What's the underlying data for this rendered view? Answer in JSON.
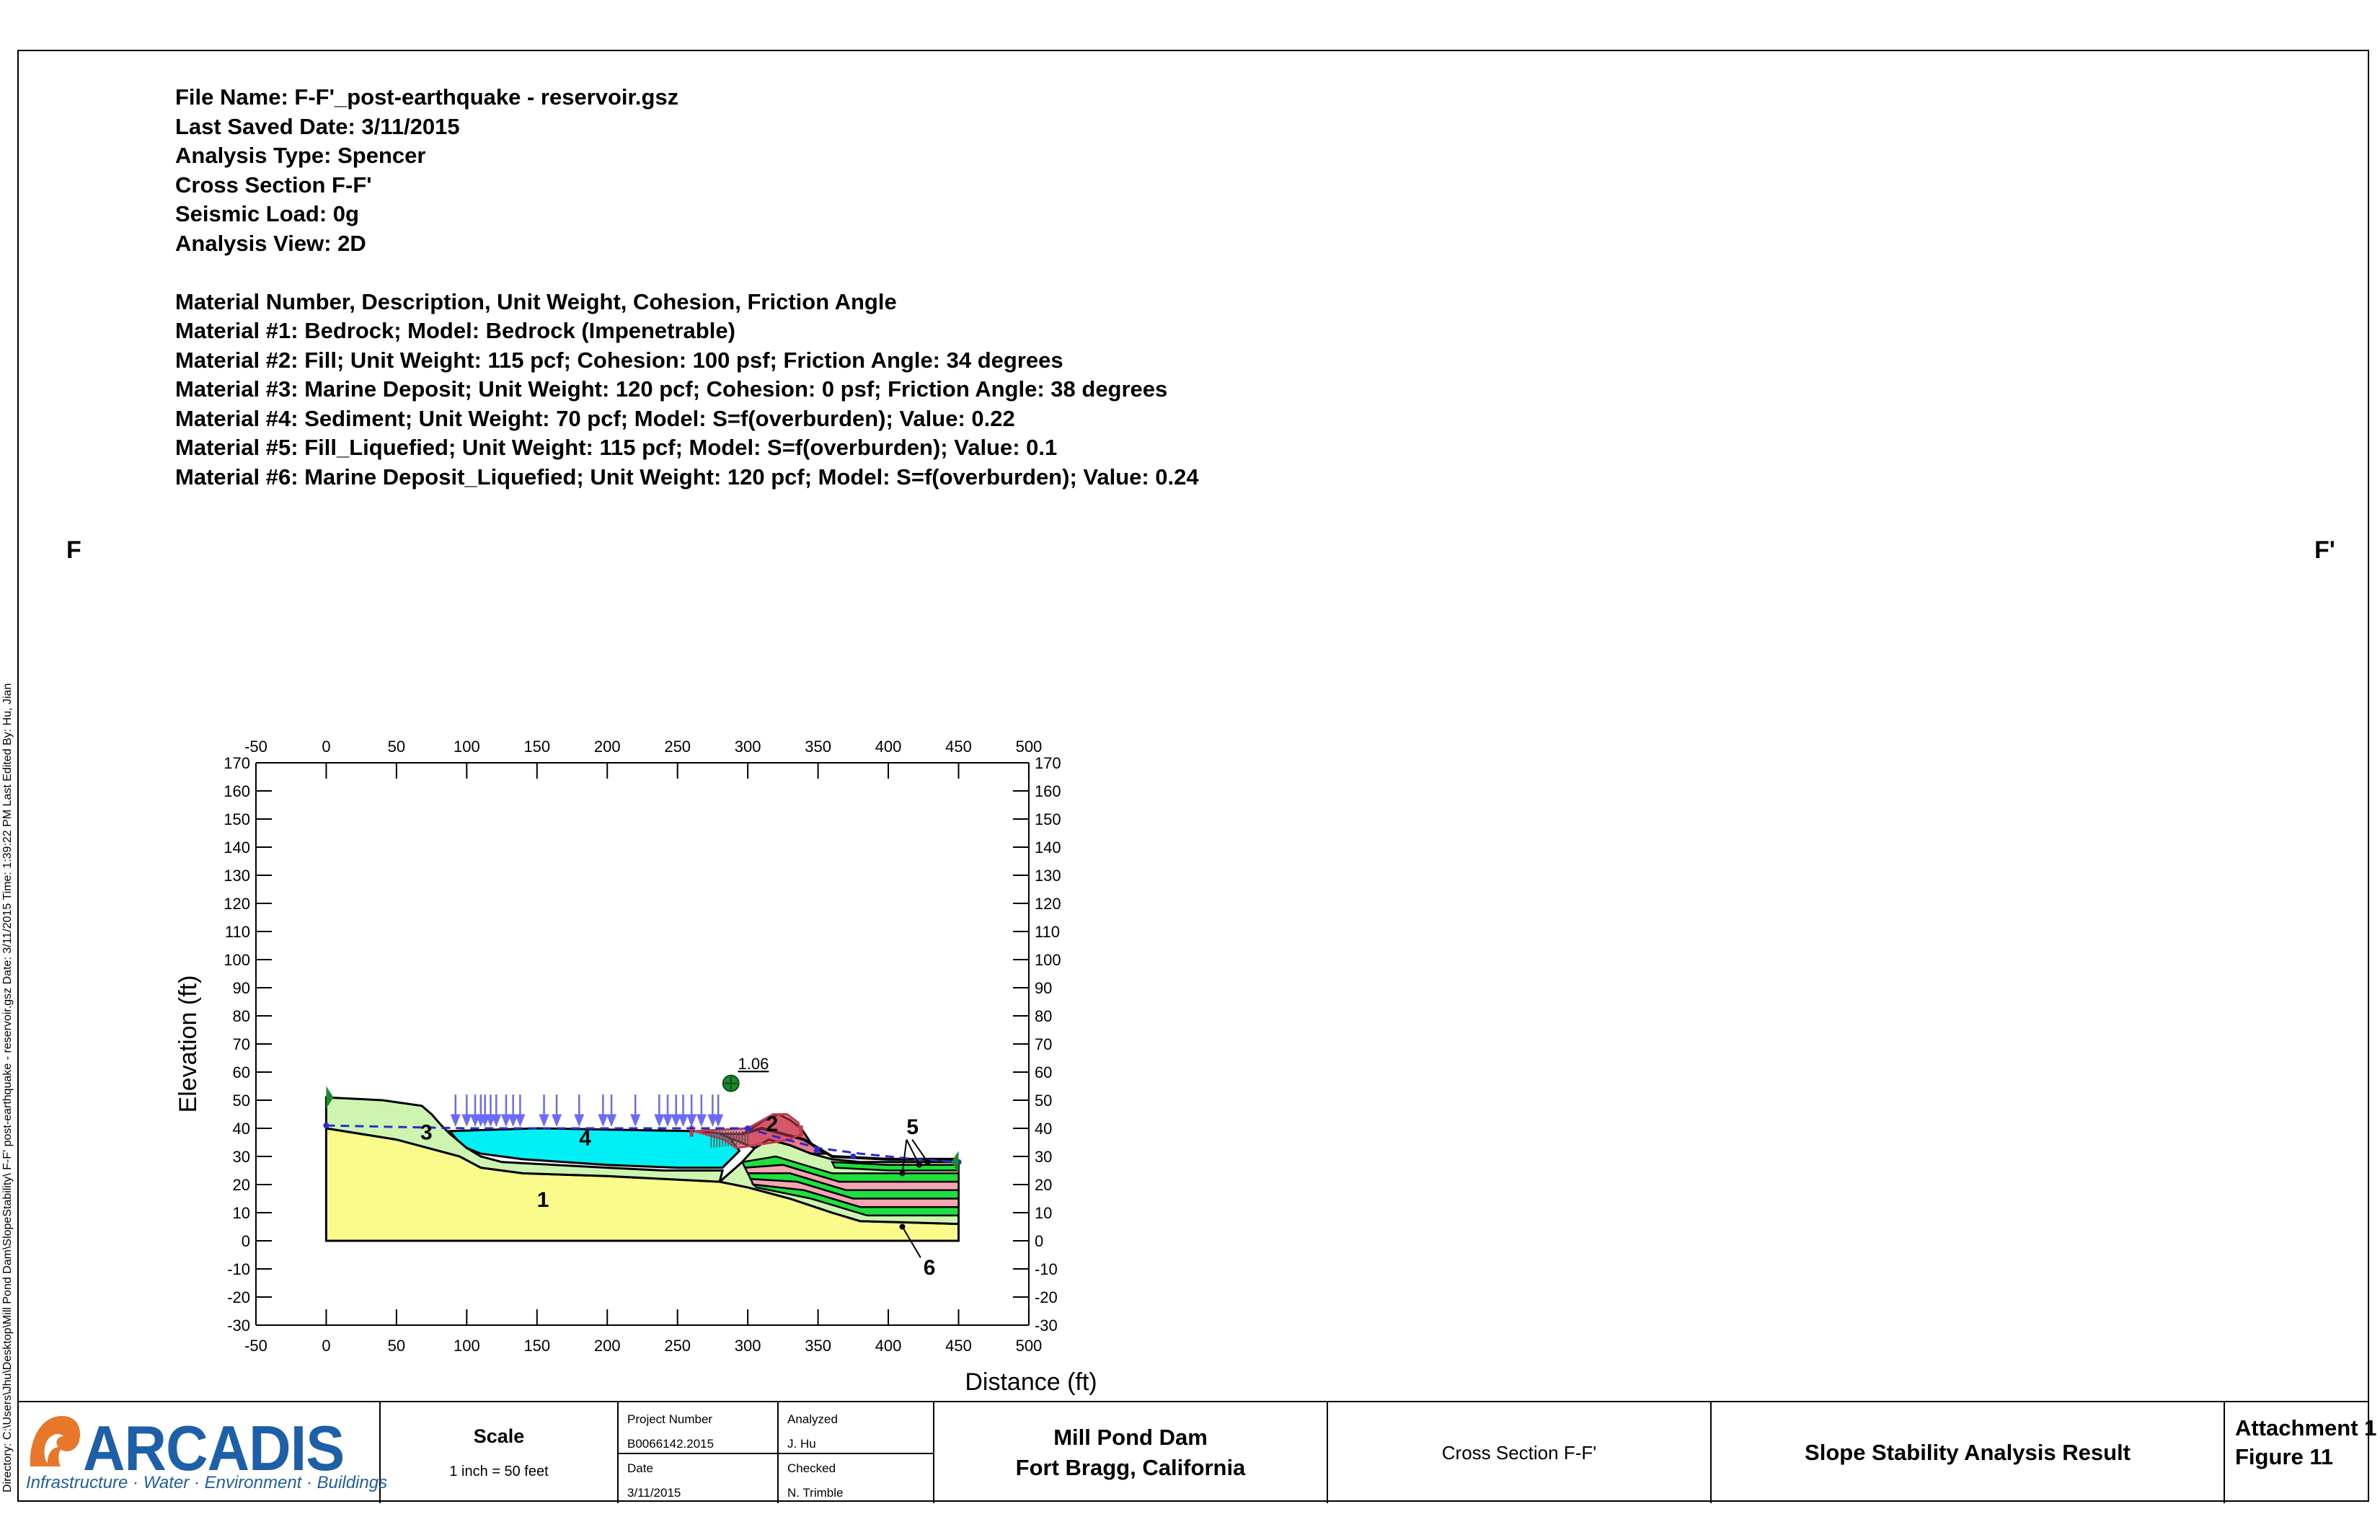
{
  "header": {
    "lines": [
      "File Name: F-F'_post-earthquake - reservoir.gsz",
      "Last Saved Date: 3/11/2015",
      "Analysis Type: Spencer",
      "Cross Section F-F'",
      "Seismic Load: 0g",
      "Analysis View: 2D"
    ],
    "materials": [
      "Material Number, Description, Unit Weight, Cohesion, Friction Angle",
      "Material #1: Bedrock; Model: Bedrock (Impenetrable)",
      "Material #2: Fill; Unit Weight: 115 pcf; Cohesion: 100 psf; Friction Angle: 34 degrees",
      "Material #3: Marine Deposit; Unit Weight: 120 pcf; Cohesion: 0 psf; Friction Angle: 38 degrees",
      "Material #4: Sediment; Unit Weight: 70 pcf; Model: S=f(overburden); Value: 0.22",
      "Material #5: Fill_Liquefied; Unit Weight: 115 pcf; Model: S=f(overburden); Value: 0.1",
      "Material #6: Marine Deposit_Liquefied; Unit Weight: 120 pcf; Model: S=f(overburden); Value: 0.24"
    ]
  },
  "side_label": "Directory: C:\\Users\\Jhu\\Desktop\\Mill Pond Dam\\SlopeStability\\ F-F' post-earthquake - reservoir.gsz    Date: 3/11/2015    Time: 1:39:22 PM    Last Edited By: Hu, Jian",
  "section_left": "F",
  "section_right": "F'",
  "diagram": {
    "xlabel": "Distance (ft)",
    "ylabel": "Elevation (ft)",
    "x_ticks": [
      -50,
      0,
      50,
      100,
      150,
      200,
      250,
      300,
      350,
      400,
      450,
      500
    ],
    "y_ticks": [
      170,
      160,
      150,
      140,
      130,
      120,
      110,
      100,
      90,
      80,
      70,
      60,
      50,
      40,
      30,
      20,
      10,
      0,
      -10,
      -20,
      -30
    ],
    "xlim": [
      -50,
      500
    ],
    "ylim": [
      -30,
      170
    ],
    "factor_of_safety": "1.06",
    "material_labels": [
      "1",
      "2",
      "3",
      "4",
      "5",
      "6"
    ],
    "colors": {
      "bedrock": "#fbfb8c",
      "fill": "#e87a8a",
      "marine_deposit": "#cdf5b0",
      "sediment": "#00f0f5",
      "fill_liquefied": "#1ee03c",
      "marine_deposit_liquefied": "#f4a6b0",
      "water_line": "#2a2ad0",
      "load_arrow": "#6a6aff",
      "slip_surface": "#c23b50",
      "center": "#1a8a2a"
    }
  },
  "title_block": {
    "logo": "ARCADIS",
    "logo_tagline": "Infrastructure · Water · Environment · Buildings",
    "scale_label": "Scale",
    "scale_value": "1 inch = 50 feet",
    "project_number_label": "Project Number",
    "project_number": "B0066142.2015",
    "date_label": "Date",
    "date": "3/11/2015",
    "analyzed_label": "Analyzed",
    "analyzed": "J. Hu",
    "checked_label": "Checked",
    "checked": "N. Trimble",
    "project_line1": "Mill Pond Dam",
    "project_line2": "Fort Bragg, California",
    "section": "Cross Section F-F'",
    "result": "Slope Stability Analysis Result",
    "attachment": "Attachment 1",
    "figure": "Figure 11"
  }
}
